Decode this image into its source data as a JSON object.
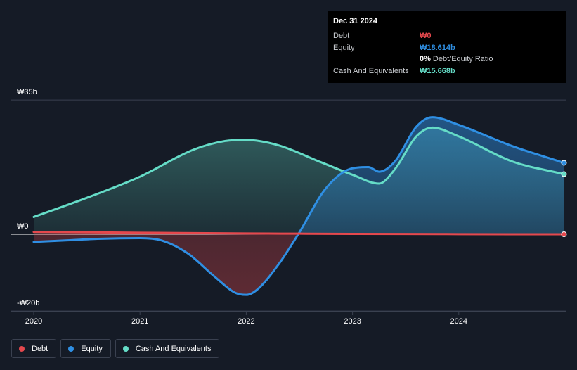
{
  "chart_data": {
    "type": "area",
    "currency_symbol": "₩",
    "x_ticks": [
      "2020",
      "2021",
      "2022",
      "2023",
      "2024"
    ],
    "y_ticks": [
      {
        "value": 35,
        "label": "₩35b"
      },
      {
        "value": 0,
        "label": "₩0"
      },
      {
        "value": -20,
        "label": "-₩20b"
      }
    ],
    "ylim": [
      -20,
      35
    ],
    "xlim": [
      2019.8,
      2024.99
    ],
    "series": [
      {
        "name": "Debt",
        "color": "#e5484d",
        "points": [
          [
            2020.0,
            0.6
          ],
          [
            2020.5,
            0.5
          ],
          [
            2021.0,
            0.4
          ],
          [
            2021.5,
            0.3
          ],
          [
            2022.0,
            0.2
          ],
          [
            2022.5,
            0.15
          ],
          [
            2023.0,
            0.1
          ],
          [
            2023.5,
            0.06
          ],
          [
            2024.0,
            0.03
          ],
          [
            2024.5,
            0.01
          ],
          [
            2024.99,
            0.0
          ]
        ]
      },
      {
        "name": "Equity",
        "color": "#2f8fe3",
        "points": [
          [
            2020.0,
            -2.0
          ],
          [
            2020.3,
            -1.6
          ],
          [
            2020.6,
            -1.2
          ],
          [
            2021.0,
            -1.0
          ],
          [
            2021.2,
            -1.6
          ],
          [
            2021.45,
            -5.0
          ],
          [
            2021.7,
            -11.0
          ],
          [
            2021.9,
            -15.3
          ],
          [
            2022.0,
            -15.8
          ],
          [
            2022.1,
            -14.5
          ],
          [
            2022.3,
            -8.0
          ],
          [
            2022.5,
            0.5
          ],
          [
            2022.75,
            12.0
          ],
          [
            2023.0,
            17.2
          ],
          [
            2023.15,
            17.5
          ],
          [
            2023.25,
            16.3
          ],
          [
            2023.4,
            19.0
          ],
          [
            2023.6,
            28.0
          ],
          [
            2023.75,
            30.5
          ],
          [
            2024.0,
            28.5
          ],
          [
            2024.5,
            23.0
          ],
          [
            2024.99,
            18.614
          ]
        ]
      },
      {
        "name": "Cash And Equivalents",
        "color": "#65dcc7",
        "points": [
          [
            2020.0,
            4.5
          ],
          [
            2020.5,
            9.5
          ],
          [
            2021.0,
            15.0
          ],
          [
            2021.5,
            22.0
          ],
          [
            2021.8,
            24.3
          ],
          [
            2022.0,
            24.6
          ],
          [
            2022.3,
            23.2
          ],
          [
            2022.7,
            18.8
          ],
          [
            2023.0,
            15.5
          ],
          [
            2023.25,
            13.2
          ],
          [
            2023.4,
            17.0
          ],
          [
            2023.6,
            25.5
          ],
          [
            2023.75,
            27.8
          ],
          [
            2024.0,
            25.5
          ],
          [
            2024.5,
            19.0
          ],
          [
            2024.99,
            15.668
          ]
        ]
      }
    ]
  },
  "tooltip": {
    "date": "Dec 31 2024",
    "debt_label": "Debt",
    "debt_value": "₩0",
    "equity_label": "Equity",
    "equity_value": "₩18.614b",
    "ratio_value": "0%",
    "ratio_label": "Debt/Equity Ratio",
    "cash_label": "Cash And Equivalents",
    "cash_value": "₩15.668b"
  },
  "legend": [
    "Debt",
    "Equity",
    "Cash And Equivalents"
  ]
}
